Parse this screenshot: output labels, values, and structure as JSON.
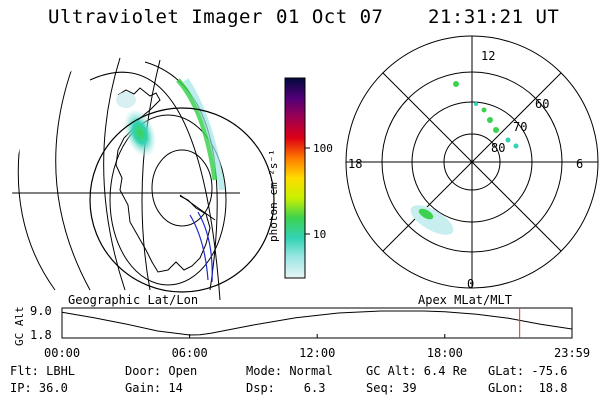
{
  "header": {
    "instrument": "Ultraviolet Imager",
    "date": "01 Oct 07",
    "time": "21:31:21 UT"
  },
  "left_panel": {
    "caption": "Geographic Lat/Lon"
  },
  "right_panel": {
    "caption": "Apex MLat/MLT",
    "mlt_labels": [
      "12",
      "18",
      "6",
      "0"
    ],
    "lat_labels": [
      "60",
      "70",
      "80"
    ]
  },
  "colorbar": {
    "unit_label": "photon cm⁻²s⁻¹",
    "ticks": [
      "100",
      "10"
    ],
    "colors": [
      "#000a3c",
      "#500078",
      "#a00050",
      "#dc0014",
      "#ff7800",
      "#ffdc00",
      "#c8f000",
      "#3cd250",
      "#32d2b4",
      "#a0e6e6",
      "#e6f5f5"
    ]
  },
  "altitude_track": {
    "axis_label": "GC Alt",
    "ytick_labels": [
      "9.0",
      "1.8"
    ],
    "xtick_labels": [
      "00:00",
      "06:00",
      "12:00",
      "18:00",
      "23:59"
    ],
    "marker_color": "#e03030"
  },
  "footer": [
    [
      "Flt: LBHL",
      "Door: Open",
      "Mode: Normal",
      "GC Alt: 6.4 Re",
      "GLat: -75.6"
    ],
    [
      "IP: 36.0",
      "Gain: 14",
      "Dsp:    6.3",
      "Seq: 39",
      "GLon:  18.8"
    ]
  ],
  "chart_data": {
    "type": "line",
    "title": "",
    "xlabel": "",
    "ylabel": "GC Alt",
    "x_unit": "UT hours",
    "xlim": [
      0,
      23.983
    ],
    "ylim": [
      1.8,
      9.0
    ],
    "x": [
      0.0,
      1.5,
      3.0,
      4.5,
      6.0,
      6.5,
      7.0,
      9.0,
      11.0,
      13.0,
      15.0,
      17.0,
      18.0,
      19.5,
      21.0,
      22.5,
      23.98
    ],
    "y": [
      8.6,
      7.0,
      5.1,
      3.0,
      1.8,
      1.9,
      2.3,
      4.8,
      7.0,
      8.4,
      9.0,
      9.0,
      8.8,
      8.0,
      6.8,
      5.0,
      3.6
    ],
    "current_time": 21.522,
    "current_alt": 6.4
  }
}
